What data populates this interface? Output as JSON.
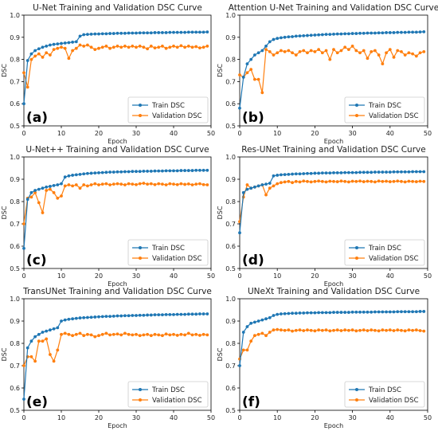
{
  "colors": {
    "train": "#1f77b4",
    "validation": "#ff7f0e"
  },
  "chart_data": [
    {
      "type": "line",
      "letter": "(a)",
      "title": "U-Net Training and Validation DSC Curve",
      "xlabel": "Epoch",
      "ylabel": "DSC",
      "xlim": [
        0,
        50
      ],
      "ylim": [
        0.5,
        1.0
      ],
      "xticks": [
        0,
        10,
        20,
        30,
        40,
        50
      ],
      "yticks": [
        0.5,
        0.6,
        0.7,
        0.8,
        0.9,
        1.0
      ],
      "legend": "bottom-right",
      "series": [
        {
          "name": "Train DSC",
          "values": [
            0.6,
            0.795,
            0.825,
            0.84,
            0.848,
            0.855,
            0.86,
            0.865,
            0.868,
            0.87,
            0.872,
            0.874,
            0.876,
            0.878,
            0.88,
            0.905,
            0.912,
            0.913,
            0.914,
            0.915,
            0.915,
            0.916,
            0.916,
            0.917,
            0.917,
            0.918,
            0.918,
            0.918,
            0.919,
            0.919,
            0.919,
            0.92,
            0.92,
            0.92,
            0.92,
            0.921,
            0.921,
            0.921,
            0.921,
            0.922,
            0.922,
            0.922,
            0.922,
            0.922,
            0.923,
            0.923,
            0.923,
            0.923,
            0.923,
            0.924
          ]
        },
        {
          "name": "Validation DSC",
          "values": [
            0.74,
            0.675,
            0.8,
            0.815,
            0.825,
            0.81,
            0.83,
            0.82,
            0.845,
            0.85,
            0.855,
            0.85,
            0.805,
            0.84,
            0.85,
            0.865,
            0.86,
            0.865,
            0.855,
            0.845,
            0.85,
            0.855,
            0.86,
            0.85,
            0.855,
            0.86,
            0.855,
            0.86,
            0.855,
            0.86,
            0.855,
            0.86,
            0.855,
            0.848,
            0.86,
            0.852,
            0.855,
            0.86,
            0.85,
            0.855,
            0.86,
            0.855,
            0.862,
            0.855,
            0.86,
            0.855,
            0.858,
            0.852,
            0.855,
            0.86
          ]
        }
      ]
    },
    {
      "type": "line",
      "letter": "(b)",
      "title": "Attention U-Net Training and Validation DSC Curve",
      "xlabel": "Epoch",
      "ylabel": "DSC",
      "xlim": [
        0,
        50
      ],
      "ylim": [
        0.5,
        1.0
      ],
      "xticks": [
        0,
        10,
        20,
        30,
        40,
        50
      ],
      "yticks": [
        0.5,
        0.6,
        0.7,
        0.8,
        0.9,
        1.0
      ],
      "legend": "bottom-right",
      "series": [
        {
          "name": "Train DSC",
          "values": [
            0.58,
            0.72,
            0.78,
            0.8,
            0.82,
            0.83,
            0.84,
            0.86,
            0.88,
            0.89,
            0.895,
            0.898,
            0.9,
            0.902,
            0.903,
            0.905,
            0.906,
            0.907,
            0.908,
            0.909,
            0.91,
            0.911,
            0.912,
            0.913,
            0.913,
            0.914,
            0.915,
            0.915,
            0.916,
            0.916,
            0.917,
            0.917,
            0.918,
            0.918,
            0.919,
            0.919,
            0.919,
            0.92,
            0.92,
            0.921,
            0.921,
            0.921,
            0.922,
            0.922,
            0.922,
            0.923,
            0.923,
            0.923,
            0.924,
            0.925
          ]
        },
        {
          "name": "Validation DSC",
          "values": [
            0.73,
            0.72,
            0.74,
            0.755,
            0.71,
            0.71,
            0.65,
            0.845,
            0.835,
            0.82,
            0.83,
            0.84,
            0.835,
            0.84,
            0.83,
            0.82,
            0.835,
            0.84,
            0.83,
            0.84,
            0.835,
            0.845,
            0.83,
            0.84,
            0.8,
            0.845,
            0.83,
            0.84,
            0.855,
            0.845,
            0.86,
            0.84,
            0.83,
            0.84,
            0.805,
            0.835,
            0.84,
            0.82,
            0.78,
            0.83,
            0.845,
            0.81,
            0.84,
            0.835,
            0.82,
            0.83,
            0.825,
            0.815,
            0.83,
            0.835
          ]
        }
      ]
    },
    {
      "type": "line",
      "letter": "(c)",
      "title": "U-Net++ Training and Validation DSC Curve",
      "xlabel": "Epoch",
      "ylabel": "DSC",
      "xlim": [
        0,
        50
      ],
      "ylim": [
        0.5,
        1.0
      ],
      "xticks": [
        0,
        10,
        20,
        30,
        40,
        50
      ],
      "yticks": [
        0.5,
        0.6,
        0.7,
        0.8,
        0.9,
        1.0
      ],
      "legend": "bottom-right",
      "series": [
        {
          "name": "Train DSC",
          "values": [
            0.59,
            0.81,
            0.84,
            0.85,
            0.855,
            0.86,
            0.865,
            0.868,
            0.872,
            0.875,
            0.88,
            0.91,
            0.915,
            0.918,
            0.92,
            0.922,
            0.924,
            0.926,
            0.927,
            0.928,
            0.929,
            0.93,
            0.931,
            0.932,
            0.932,
            0.933,
            0.933,
            0.934,
            0.934,
            0.935,
            0.935,
            0.935,
            0.936,
            0.936,
            0.936,
            0.937,
            0.937,
            0.937,
            0.938,
            0.938,
            0.938,
            0.938,
            0.939,
            0.939,
            0.939,
            0.939,
            0.94,
            0.94,
            0.94,
            0.94
          ]
        },
        {
          "name": "Validation DSC",
          "values": [
            0.7,
            0.815,
            0.82,
            0.84,
            0.795,
            0.75,
            0.85,
            0.855,
            0.84,
            0.815,
            0.825,
            0.87,
            0.875,
            0.87,
            0.875,
            0.86,
            0.875,
            0.87,
            0.875,
            0.88,
            0.875,
            0.878,
            0.88,
            0.875,
            0.878,
            0.88,
            0.878,
            0.875,
            0.88,
            0.878,
            0.876,
            0.88,
            0.882,
            0.878,
            0.88,
            0.876,
            0.88,
            0.878,
            0.875,
            0.88,
            0.878,
            0.876,
            0.88,
            0.877,
            0.879,
            0.875,
            0.878,
            0.88,
            0.876,
            0.875
          ]
        }
      ]
    },
    {
      "type": "line",
      "letter": "(d)",
      "title": "Res-UNet Training and Validation DSC Curve",
      "xlabel": "Epoch",
      "ylabel": "DSC",
      "xlim": [
        0,
        50
      ],
      "ylim": [
        0.5,
        1.0
      ],
      "xticks": [
        0,
        10,
        20,
        30,
        40,
        50
      ],
      "yticks": [
        0.5,
        0.6,
        0.7,
        0.8,
        0.9,
        1.0
      ],
      "legend": "bottom-right",
      "series": [
        {
          "name": "Train DSC",
          "values": [
            0.66,
            0.84,
            0.855,
            0.86,
            0.865,
            0.87,
            0.875,
            0.878,
            0.882,
            0.915,
            0.918,
            0.92,
            0.921,
            0.922,
            0.923,
            0.924,
            0.924,
            0.925,
            0.926,
            0.926,
            0.927,
            0.927,
            0.928,
            0.928,
            0.928,
            0.929,
            0.929,
            0.929,
            0.93,
            0.93,
            0.93,
            0.93,
            0.931,
            0.931,
            0.931,
            0.931,
            0.932,
            0.932,
            0.932,
            0.932,
            0.932,
            0.933,
            0.933,
            0.933,
            0.933,
            0.933,
            0.934,
            0.934,
            0.934,
            0.934
          ]
        },
        {
          "name": "Validation DSC",
          "values": [
            0.71,
            0.82,
            0.875,
            0.86,
            0.865,
            0.87,
            0.875,
            0.83,
            0.86,
            0.87,
            0.88,
            0.885,
            0.888,
            0.89,
            0.885,
            0.89,
            0.888,
            0.892,
            0.89,
            0.888,
            0.89,
            0.892,
            0.89,
            0.888,
            0.891,
            0.89,
            0.889,
            0.892,
            0.89,
            0.888,
            0.891,
            0.89,
            0.892,
            0.889,
            0.891,
            0.89,
            0.888,
            0.892,
            0.89,
            0.891,
            0.889,
            0.89,
            0.892,
            0.89,
            0.888,
            0.891,
            0.89,
            0.889,
            0.891,
            0.89
          ]
        }
      ]
    },
    {
      "type": "line",
      "letter": "(e)",
      "title": "TransUNet Training and Validation DSC Curve",
      "xlabel": "Epoch",
      "ylabel": "DSC",
      "xlim": [
        0,
        50
      ],
      "ylim": [
        0.5,
        1.0
      ],
      "xticks": [
        0,
        10,
        20,
        30,
        40,
        50
      ],
      "yticks": [
        0.5,
        0.6,
        0.7,
        0.8,
        0.9,
        1.0
      ],
      "legend": "bottom-right",
      "series": [
        {
          "name": "Train DSC",
          "values": [
            0.55,
            0.78,
            0.81,
            0.83,
            0.84,
            0.85,
            0.855,
            0.86,
            0.865,
            0.87,
            0.9,
            0.905,
            0.908,
            0.91,
            0.912,
            0.914,
            0.915,
            0.916,
            0.917,
            0.918,
            0.919,
            0.92,
            0.921,
            0.921,
            0.922,
            0.923,
            0.923,
            0.924,
            0.924,
            0.925,
            0.925,
            0.926,
            0.926,
            0.927,
            0.927,
            0.928,
            0.928,
            0.928,
            0.929,
            0.929,
            0.929,
            0.93,
            0.93,
            0.93,
            0.931,
            0.931,
            0.931,
            0.932,
            0.932,
            0.932
          ]
        },
        {
          "name": "Validation DSC",
          "values": [
            0.7,
            0.74,
            0.74,
            0.72,
            0.81,
            0.81,
            0.82,
            0.75,
            0.72,
            0.77,
            0.84,
            0.845,
            0.84,
            0.835,
            0.84,
            0.845,
            0.835,
            0.84,
            0.838,
            0.83,
            0.835,
            0.84,
            0.845,
            0.838,
            0.84,
            0.842,
            0.838,
            0.845,
            0.84,
            0.838,
            0.84,
            0.835,
            0.838,
            0.84,
            0.835,
            0.84,
            0.838,
            0.835,
            0.842,
            0.838,
            0.84,
            0.836,
            0.84,
            0.838,
            0.845,
            0.838,
            0.84,
            0.836,
            0.84,
            0.838
          ]
        }
      ]
    },
    {
      "type": "line",
      "letter": "(f)",
      "title": "UNeXt Training and Validation DSC Curve",
      "xlabel": "Epoch",
      "ylabel": "DSC",
      "xlim": [
        0,
        50
      ],
      "ylim": [
        0.5,
        1.0
      ],
      "xticks": [
        0,
        10,
        20,
        30,
        40,
        50
      ],
      "yticks": [
        0.5,
        0.6,
        0.7,
        0.8,
        0.9,
        1.0
      ],
      "legend": "bottom-right",
      "series": [
        {
          "name": "Train DSC",
          "values": [
            0.7,
            0.85,
            0.875,
            0.89,
            0.895,
            0.9,
            0.905,
            0.91,
            0.915,
            0.925,
            0.93,
            0.932,
            0.933,
            0.934,
            0.935,
            0.935,
            0.936,
            0.936,
            0.937,
            0.937,
            0.937,
            0.938,
            0.938,
            0.938,
            0.938,
            0.939,
            0.939,
            0.939,
            0.939,
            0.939,
            0.94,
            0.94,
            0.94,
            0.94,
            0.94,
            0.94,
            0.941,
            0.941,
            0.941,
            0.941,
            0.941,
            0.941,
            0.942,
            0.942,
            0.942,
            0.942,
            0.942,
            0.942,
            0.943,
            0.943
          ]
        },
        {
          "name": "Validation DSC",
          "values": [
            0.73,
            0.77,
            0.77,
            0.81,
            0.835,
            0.84,
            0.845,
            0.835,
            0.85,
            0.86,
            0.862,
            0.86,
            0.858,
            0.86,
            0.855,
            0.858,
            0.86,
            0.857,
            0.86,
            0.858,
            0.856,
            0.86,
            0.858,
            0.86,
            0.856,
            0.858,
            0.86,
            0.857,
            0.86,
            0.858,
            0.86,
            0.856,
            0.858,
            0.86,
            0.857,
            0.86,
            0.858,
            0.856,
            0.86,
            0.858,
            0.86,
            0.857,
            0.86,
            0.858,
            0.856,
            0.86,
            0.858,
            0.86,
            0.857,
            0.855
          ]
        }
      ]
    }
  ]
}
